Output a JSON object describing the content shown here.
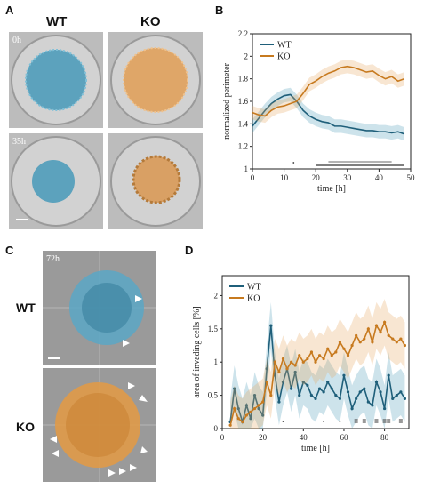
{
  "panels": {
    "A": {
      "letter": "A",
      "col_wt": "WT",
      "col_ko": "KO",
      "time_top": "0h",
      "time_bottom": "35h"
    },
    "B": {
      "letter": "B"
    },
    "C": {
      "letter": "C",
      "time": "72h",
      "row_wt": "WT",
      "row_ko": "KO"
    },
    "D": {
      "letter": "D"
    }
  },
  "colors": {
    "wt": "#1f5f7a",
    "ko": "#c77a1f",
    "wt_fill": "#4a9ab8",
    "ko_fill": "#e6a45c"
  },
  "chart_data": [
    {
      "panel": "B",
      "type": "line",
      "xlabel": "time [h]",
      "ylabel": "normalized perimeter",
      "xlim": [
        0,
        50
      ],
      "ylim": [
        1,
        2.2
      ],
      "xticks": [
        "0",
        "10",
        "20",
        "30",
        "40",
        "50"
      ],
      "yticks": [
        "1",
        "1.2",
        "1.4",
        "1.6",
        "1.8",
        "2",
        "2.2"
      ],
      "legend": "top-left",
      "series": [
        {
          "name": "WT",
          "x": [
            0,
            2,
            4,
            6,
            8,
            10,
            12,
            14,
            16,
            18,
            20,
            22,
            24,
            26,
            28,
            30,
            32,
            34,
            36,
            38,
            40,
            42,
            44,
            46,
            48
          ],
          "y": [
            1.38,
            1.45,
            1.52,
            1.58,
            1.62,
            1.65,
            1.66,
            1.6,
            1.52,
            1.47,
            1.44,
            1.42,
            1.41,
            1.38,
            1.38,
            1.37,
            1.36,
            1.35,
            1.34,
            1.34,
            1.33,
            1.33,
            1.32,
            1.33,
            1.31
          ]
        },
        {
          "name": "KO",
          "x": [
            0,
            2,
            4,
            6,
            8,
            10,
            12,
            14,
            16,
            18,
            20,
            22,
            24,
            26,
            28,
            30,
            32,
            34,
            36,
            38,
            40,
            42,
            44,
            46,
            48
          ],
          "y": [
            1.5,
            1.48,
            1.47,
            1.52,
            1.55,
            1.56,
            1.58,
            1.6,
            1.67,
            1.75,
            1.78,
            1.82,
            1.85,
            1.87,
            1.9,
            1.91,
            1.9,
            1.88,
            1.86,
            1.87,
            1.83,
            1.8,
            1.82,
            1.78,
            1.8
          ]
        }
      ],
      "significance_lines": [
        [
          20,
          48
        ],
        [
          24,
          44
        ]
      ],
      "significance_dot": 13
    },
    {
      "panel": "D",
      "type": "line",
      "xlabel": "time [h]",
      "ylabel": "area of invading cells [%]",
      "xlim": [
        0,
        92
      ],
      "ylim": [
        0,
        2.3
      ],
      "xticks": [
        "0",
        "20",
        "40",
        "60",
        "80"
      ],
      "yticks": [
        "0",
        "0.5",
        "1",
        "1.5",
        "2"
      ],
      "legend": "top-left",
      "series": [
        {
          "name": "WT",
          "x": [
            4,
            6,
            8,
            10,
            12,
            14,
            16,
            18,
            20,
            22,
            24,
            26,
            28,
            30,
            32,
            34,
            36,
            38,
            40,
            42,
            44,
            46,
            48,
            50,
            52,
            54,
            56,
            58,
            60,
            62,
            64,
            66,
            68,
            70,
            72,
            74,
            76,
            78,
            80,
            82,
            84,
            86,
            88,
            90
          ],
          "y": [
            0.1,
            0.6,
            0.3,
            0.1,
            0.35,
            0.15,
            0.5,
            0.3,
            0.2,
            0.9,
            1.55,
            0.8,
            0.4,
            0.7,
            0.9,
            0.6,
            0.85,
            0.5,
            0.7,
            0.65,
            0.5,
            0.45,
            0.6,
            0.55,
            0.7,
            0.6,
            0.5,
            0.45,
            0.8,
            0.55,
            0.3,
            0.45,
            0.55,
            0.6,
            0.4,
            0.35,
            0.7,
            0.55,
            0.3,
            0.8,
            0.45,
            0.5,
            0.55,
            0.45
          ]
        },
        {
          "name": "KO",
          "x": [
            4,
            6,
            8,
            10,
            12,
            14,
            16,
            18,
            20,
            22,
            24,
            26,
            28,
            30,
            32,
            34,
            36,
            38,
            40,
            42,
            44,
            46,
            48,
            50,
            52,
            54,
            56,
            58,
            60,
            62,
            64,
            66,
            68,
            70,
            72,
            74,
            76,
            78,
            80,
            82,
            84,
            86,
            88,
            90
          ],
          "y": [
            0.05,
            0.3,
            0.15,
            0.1,
            0.2,
            0.25,
            0.3,
            0.35,
            0.4,
            0.7,
            0.5,
            1.0,
            0.85,
            1.05,
            0.9,
            1.0,
            0.95,
            1.1,
            1.0,
            1.05,
            1.15,
            1.0,
            1.1,
            1.05,
            1.2,
            1.1,
            1.15,
            1.3,
            1.2,
            1.1,
            1.25,
            1.4,
            1.3,
            1.35,
            1.5,
            1.3,
            1.55,
            1.45,
            1.6,
            1.4,
            1.35,
            1.3,
            1.35,
            1.25
          ]
        }
      ],
      "significance_dots": [
        30,
        50,
        58
      ],
      "significance_bars": [
        66,
        70,
        76,
        80,
        82,
        88
      ]
    }
  ]
}
